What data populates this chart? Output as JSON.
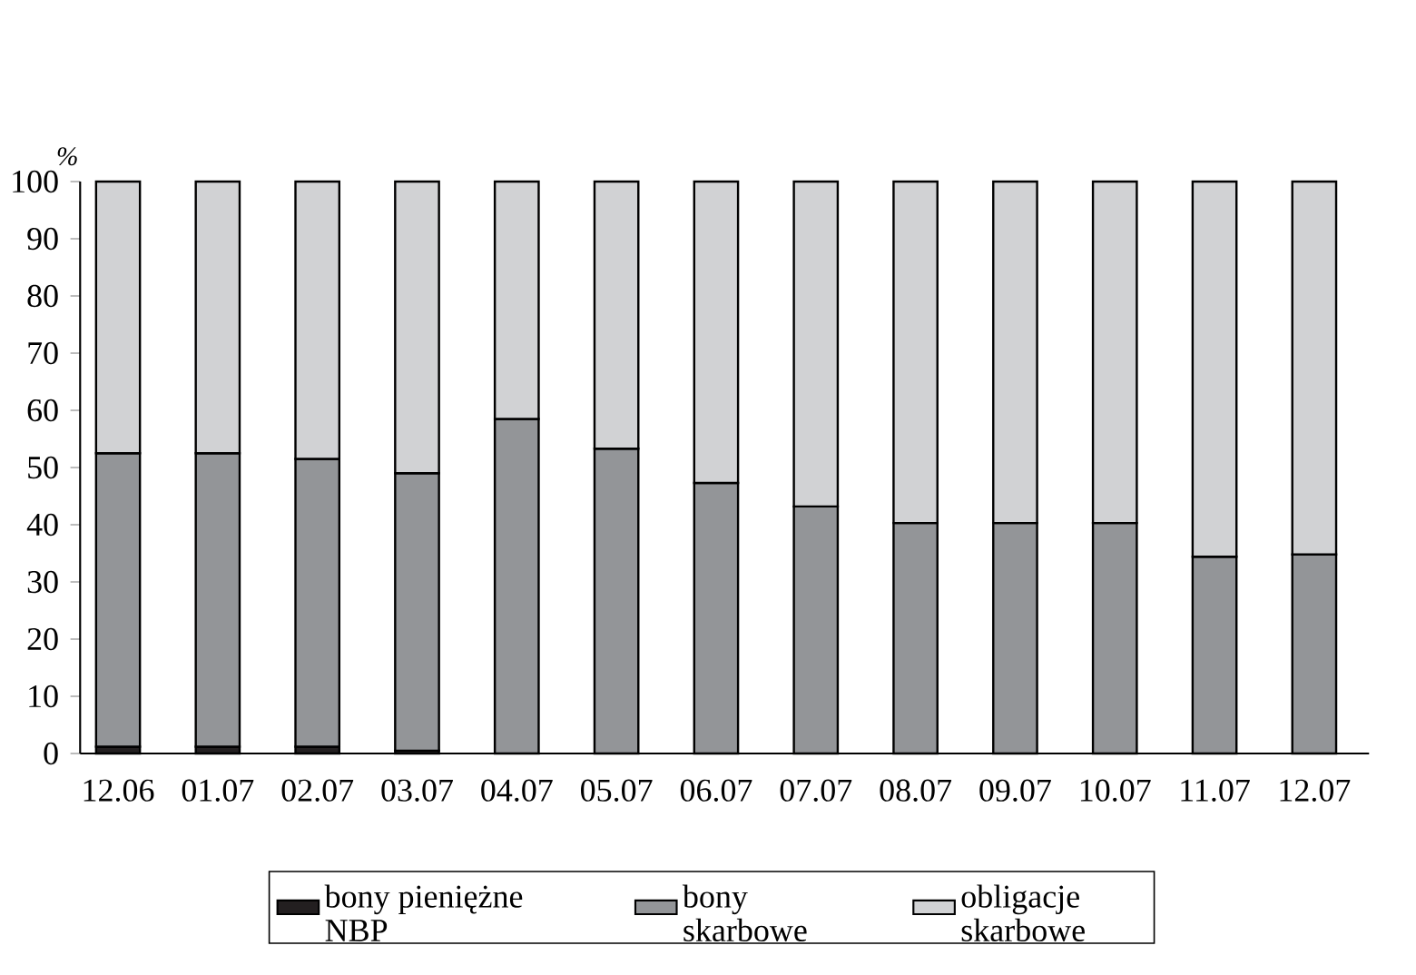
{
  "chart_data": {
    "type": "bar",
    "stacked": true,
    "ylabel": "%",
    "categories": [
      "12.06",
      "01.07",
      "02.07",
      "03.07",
      "04.07",
      "05.07",
      "06.07",
      "07.07",
      "08.07",
      "09.07",
      "10.07",
      "11.07",
      "12.07"
    ],
    "series": [
      {
        "name": "bony pieniężne NBP",
        "color": "#231f20",
        "values": [
          1.2,
          1.2,
          1.2,
          0.5,
          null,
          null,
          null,
          null,
          null,
          null,
          null,
          null,
          null
        ]
      },
      {
        "name": "bony skarbowe",
        "color": "#939598",
        "values": [
          51.3,
          51.3,
          50.3,
          48.5,
          58.5,
          53.3,
          47.3,
          43.2,
          40.3,
          40.3,
          40.3,
          34.4,
          34.8
        ]
      },
      {
        "name": "obligacje skarbowe",
        "color": "#d1d2d4",
        "values": [
          47.5,
          47.5,
          48.5,
          51.0,
          41.5,
          46.7,
          52.7,
          56.8,
          59.7,
          59.7,
          59.7,
          65.6,
          65.2
        ]
      }
    ],
    "ylim": [
      0,
      100
    ],
    "yticks": [
      0,
      10,
      20,
      30,
      40,
      50,
      60,
      70,
      80,
      90,
      100
    ],
    "grid": false,
    "legend": "bottom"
  }
}
